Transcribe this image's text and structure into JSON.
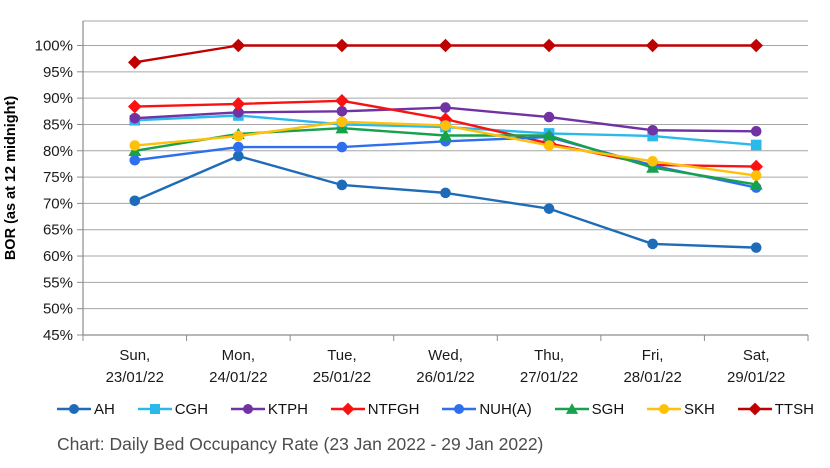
{
  "chart_data": {
    "type": "line",
    "title": "Chart: Daily Bed Occupancy Rate (23 Jan 2022 - 29 Jan 2022)",
    "ylabel": "BOR (as at 12 midnight)",
    "xlabel": "",
    "ylim": [
      45,
      100
    ],
    "y_tick_step": 5,
    "y_ticks": [
      "45%",
      "50%",
      "55%",
      "60%",
      "65%",
      "70%",
      "75%",
      "80%",
      "85%",
      "90%",
      "95%",
      "100%"
    ],
    "grid": true,
    "legend_position": "bottom",
    "unit": "%",
    "x_labels": [
      {
        "line1": "Sun,",
        "line2": "23/01/22"
      },
      {
        "line1": "Mon,",
        "line2": "24/01/22"
      },
      {
        "line1": "Tue,",
        "line2": "25/01/22"
      },
      {
        "line1": "Wed,",
        "line2": "26/01/22"
      },
      {
        "line1": "Thu,",
        "line2": "27/01/22"
      },
      {
        "line1": "Fri,",
        "line2": "28/01/22"
      },
      {
        "line1": "Sat,",
        "line2": "29/01/22"
      }
    ],
    "series": [
      {
        "name": "AH",
        "color": "#1e6cb8",
        "marker": "circle",
        "values": [
          70.5,
          79.0,
          73.5,
          72.0,
          69.0,
          62.3,
          61.6
        ]
      },
      {
        "name": "CGH",
        "color": "#2bb9ec",
        "marker": "square",
        "values": [
          85.8,
          86.7,
          85.0,
          84.5,
          83.3,
          82.8,
          81.1
        ]
      },
      {
        "name": "KTPH",
        "color": "#7133a3",
        "marker": "circle",
        "values": [
          86.2,
          87.3,
          87.5,
          88.2,
          86.4,
          83.9,
          83.7
        ]
      },
      {
        "name": "NTFGH",
        "color": "#fa1111",
        "marker": "diamond",
        "values": [
          88.4,
          88.9,
          89.5,
          86.0,
          81.4,
          77.3,
          77.0
        ]
      },
      {
        "name": "NUH(A)",
        "color": "#2e6ff0",
        "marker": "circle",
        "values": [
          78.2,
          80.7,
          80.7,
          81.8,
          82.6,
          77.2,
          73.0
        ]
      },
      {
        "name": "SGH",
        "color": "#16a24c",
        "marker": "triangle",
        "values": [
          80.0,
          83.2,
          84.3,
          82.9,
          82.9,
          76.8,
          73.6
        ]
      },
      {
        "name": "SKH",
        "color": "#fec008",
        "marker": "circle",
        "values": [
          81.0,
          82.8,
          85.5,
          84.8,
          81.0,
          78.0,
          75.3
        ]
      },
      {
        "name": "TTSH",
        "color": "#c00000",
        "marker": "diamond",
        "values": [
          96.8,
          100,
          100,
          100,
          100,
          100,
          100
        ]
      }
    ],
    "colors": {
      "gridline": "#a6a6a6",
      "axis": "#8c8c8c"
    }
  }
}
